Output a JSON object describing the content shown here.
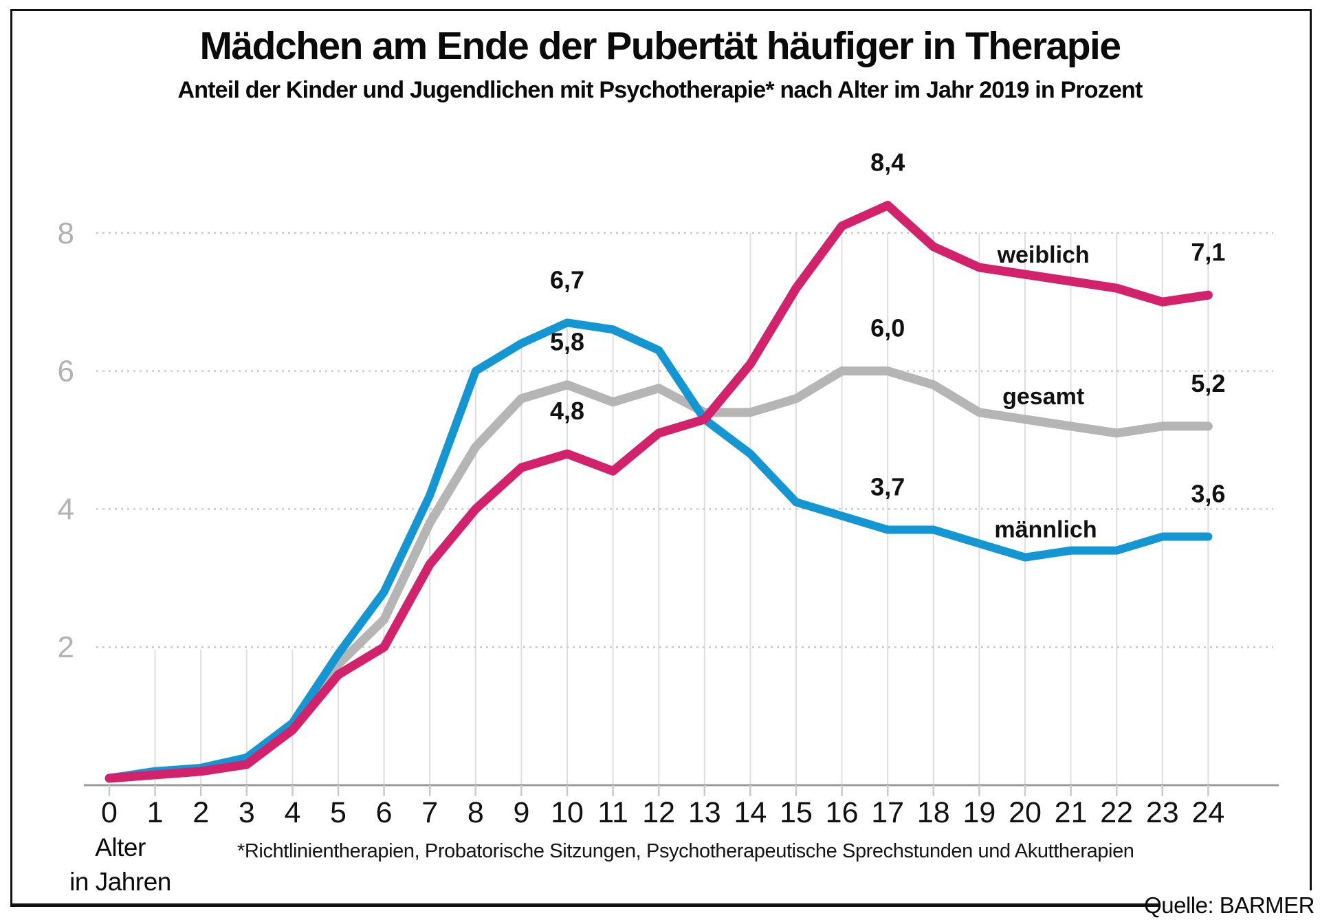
{
  "title": "Mädchen am Ende der Pubertät häufiger in Therapie",
  "subtitle": "Anteil der Kinder und Jugendlichen mit Psychotherapie* nach Alter im Jahr 2019 in Prozent",
  "footnote": "*Richtlinientherapien, Probatorische Sitzungen, Psychotherapeutische Sprechstunden und Akuttherapien",
  "source": "Quelle: BARMER",
  "axis": {
    "x_title_line1": "Alter",
    "x_title_line2": "in Jahren",
    "y_ticks": [
      "2",
      "4",
      "6",
      "8"
    ]
  },
  "colors": {
    "weiblich": "#d2226b",
    "maennlich": "#1496d3",
    "gesamt": "#b5b5b5",
    "grid_dotted": "#c9c9c9",
    "grid_vertical": "#dedede",
    "axis_line": "#9b9b9b",
    "tick": "#c9c9c9",
    "y_label": "#b2b2b2",
    "text": "#111111"
  },
  "chart_data": {
    "type": "line",
    "x": [
      0,
      1,
      2,
      3,
      4,
      5,
      6,
      7,
      8,
      9,
      10,
      11,
      12,
      13,
      14,
      15,
      16,
      17,
      18,
      19,
      20,
      21,
      22,
      23,
      24
    ],
    "xlabel": "Alter in Jahren",
    "ylabel": "Prozent",
    "ylim": [
      0,
      9
    ],
    "yticks": [
      2,
      4,
      6,
      8
    ],
    "grid": "horizontal dotted at yticks, light vertical droplines per age",
    "legend_position": "inline labels right of curves",
    "series": [
      {
        "name": "gesamt",
        "color": "#b5b5b5",
        "values": [
          0.1,
          0.2,
          0.2,
          0.35,
          0.85,
          1.75,
          2.4,
          3.8,
          4.9,
          5.6,
          5.8,
          5.55,
          5.75,
          5.4,
          5.4,
          5.6,
          6.0,
          6.0,
          5.8,
          5.4,
          5.3,
          5.2,
          5.1,
          5.2,
          5.2
        ]
      },
      {
        "name": "männlich",
        "color": "#1496d3",
        "values": [
          0.1,
          0.2,
          0.25,
          0.4,
          0.9,
          1.9,
          2.8,
          4.2,
          6.0,
          6.4,
          6.7,
          6.6,
          6.3,
          5.3,
          4.8,
          4.1,
          3.9,
          3.7,
          3.7,
          3.5,
          3.3,
          3.4,
          3.4,
          3.6,
          3.6
        ]
      },
      {
        "name": "weiblich",
        "color": "#d2226b",
        "values": [
          0.1,
          0.15,
          0.2,
          0.3,
          0.8,
          1.6,
          2.0,
          3.2,
          4.0,
          4.6,
          4.8,
          4.55,
          5.1,
          5.3,
          6.1,
          7.2,
          8.1,
          8.4,
          7.8,
          7.5,
          7.4,
          7.3,
          7.2,
          7.0,
          7.1
        ]
      }
    ],
    "point_labels": [
      {
        "series": "männlich",
        "x": 10,
        "label": "6,7"
      },
      {
        "series": "gesamt",
        "x": 10,
        "label": "5,8"
      },
      {
        "series": "weiblich",
        "x": 10,
        "label": "4,8"
      },
      {
        "series": "weiblich",
        "x": 17,
        "label": "8,4"
      },
      {
        "series": "gesamt",
        "x": 17,
        "label": "6,0"
      },
      {
        "series": "männlich",
        "x": 17,
        "label": "3,7"
      },
      {
        "series": "weiblich",
        "x": 24,
        "label": "7,1"
      },
      {
        "series": "gesamt",
        "x": 24,
        "label": "5,2"
      },
      {
        "series": "männlich",
        "x": 24,
        "label": "3,6"
      }
    ],
    "series_labels": [
      {
        "series": "weiblich",
        "label": "weiblich",
        "anchor_age": 20.4,
        "anchor_value": 7.57
      },
      {
        "series": "gesamt",
        "label": "gesamt",
        "anchor_age": 20.4,
        "anchor_value": 5.52
      },
      {
        "series": "männlich",
        "label": "männlich",
        "anchor_age": 20.45,
        "anchor_value": 3.59
      }
    ]
  }
}
